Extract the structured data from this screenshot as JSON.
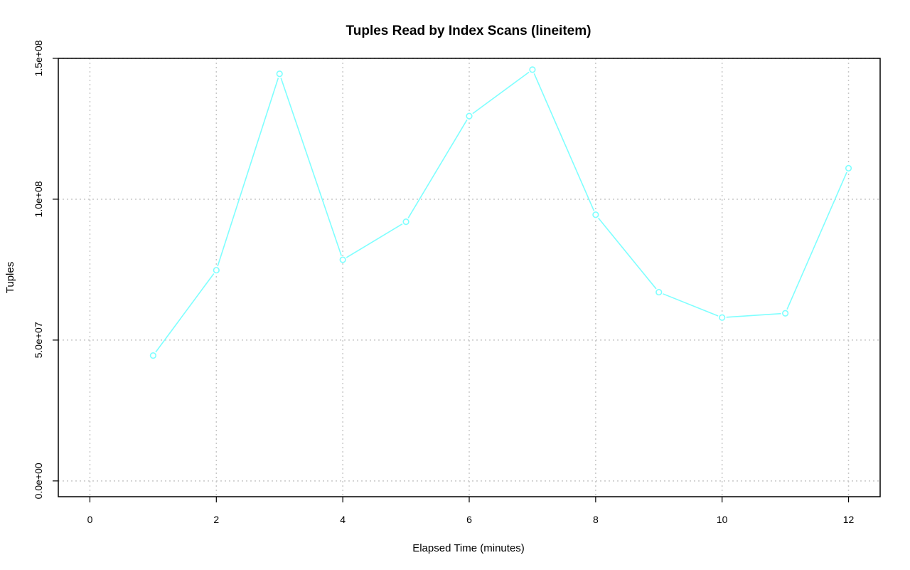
{
  "chart_data": {
    "type": "line",
    "title": "Tuples Read by Index Scans (lineitem)",
    "xlabel": "Elapsed Time (minutes)",
    "ylabel": "Tuples",
    "xlim": [
      -0.5,
      12.5
    ],
    "ylim": [
      -5600000,
      150000000
    ],
    "x_ticks": [
      0,
      2,
      4,
      6,
      8,
      10,
      12
    ],
    "x_tick_labels": [
      "0",
      "2",
      "4",
      "6",
      "8",
      "10",
      "12"
    ],
    "y_ticks": [
      0,
      50000000,
      100000000,
      150000000
    ],
    "y_tick_labels": [
      "0.0e+00",
      "5.0e+07",
      "1.0e+08",
      "1.5e+08"
    ],
    "grid": true,
    "series": [
      {
        "color": "#7fffff",
        "x": [
          1,
          2,
          3,
          4,
          5,
          6,
          7,
          8,
          9,
          10,
          11,
          12
        ],
        "values": [
          44500000,
          74800000,
          144500000,
          78500000,
          92000000,
          129500000,
          146000000,
          94500000,
          67000000,
          58000000,
          59500000,
          111000000
        ]
      }
    ]
  }
}
